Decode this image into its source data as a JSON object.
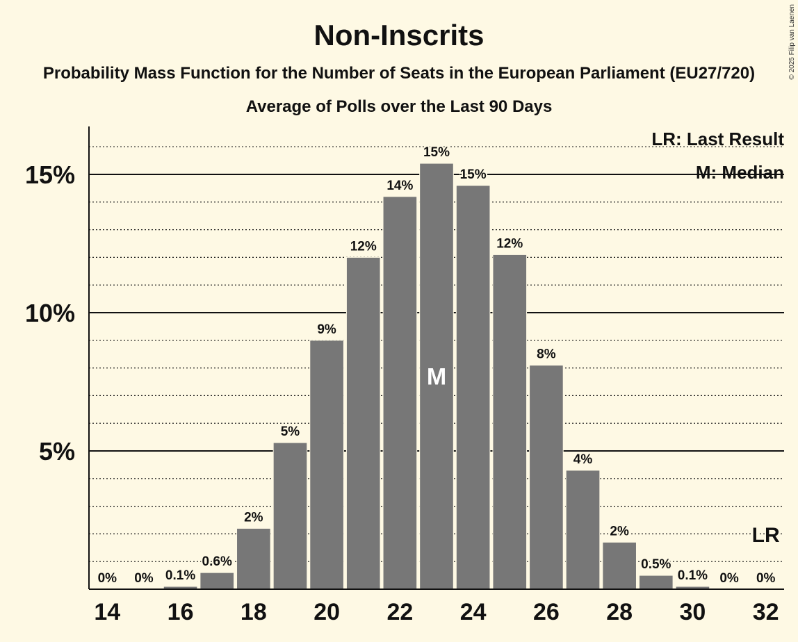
{
  "chart_data": {
    "type": "bar",
    "title": "Non-Inscrits",
    "subtitle": "Probability Mass Function for the Number of Seats in the European Parliament (EU27/720)",
    "subtitle2": "Average of Polls over the Last 90 Days",
    "copyright": "© 2025 Filip van Laenen",
    "legend": {
      "last_result": "LR: Last Result",
      "median": "M: Median"
    },
    "x": [
      14,
      15,
      16,
      17,
      18,
      19,
      20,
      21,
      22,
      23,
      24,
      25,
      26,
      27,
      28,
      29,
      30,
      31,
      32
    ],
    "values": [
      0,
      0,
      0.1,
      0.6,
      2.2,
      5.3,
      9.0,
      12.0,
      14.2,
      15.4,
      14.6,
      12.1,
      8.1,
      4.3,
      1.7,
      0.5,
      0.1,
      0,
      0
    ],
    "labels": [
      "0%",
      "0%",
      "0.1%",
      "0.6%",
      "2%",
      "5%",
      "9%",
      "12%",
      "14%",
      "15%",
      "15%",
      "12%",
      "8%",
      "4%",
      "2%",
      "0.5%",
      "0.1%",
      "0%",
      "0%"
    ],
    "x_tick_labels": [
      "14",
      "16",
      "18",
      "20",
      "22",
      "24",
      "26",
      "28",
      "30",
      "32"
    ],
    "y_tick_labels": [
      "5%",
      "10%",
      "15%"
    ],
    "y_ticks": [
      5,
      10,
      15
    ],
    "ylim": [
      0,
      16.7
    ],
    "median_seat": 23,
    "median_marker": "M",
    "last_result_seat": 32,
    "last_result_marker": "LR",
    "colors": {
      "bar": "#777777",
      "background": "#fef9e4",
      "text": "#111111",
      "median_text": "#ffffff"
    }
  }
}
